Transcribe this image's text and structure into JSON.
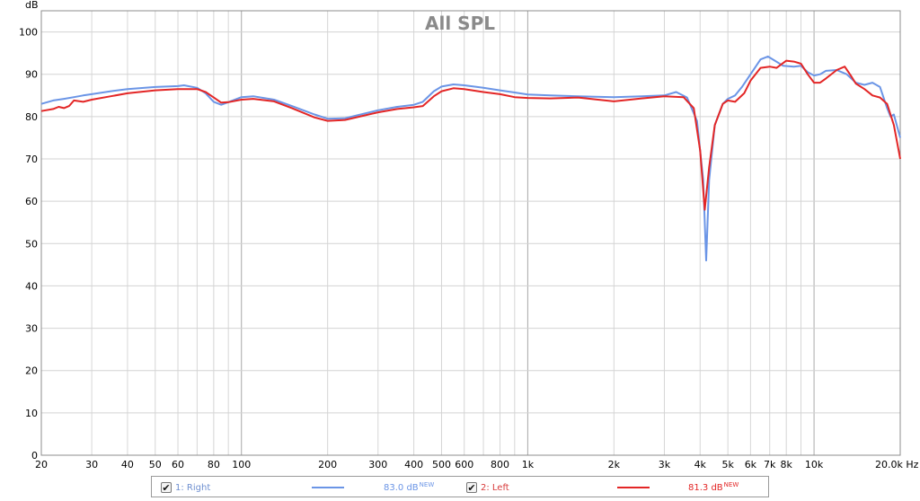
{
  "chart_data": {
    "type": "line",
    "title": "All SPL",
    "ylabel": "dB",
    "xunit": "Hz",
    "xscale": "log",
    "xlim": [
      20,
      20000
    ],
    "ylim": [
      0,
      105
    ],
    "grid": true,
    "yticks": [
      "0",
      "10",
      "20",
      "30",
      "40",
      "50",
      "60",
      "70",
      "80",
      "90",
      "100"
    ],
    "ytick_values": [
      0,
      10,
      20,
      30,
      40,
      50,
      60,
      70,
      80,
      90,
      100
    ],
    "xticks": [
      {
        "v": 20,
        "label": "20"
      },
      {
        "v": 30,
        "label": "30"
      },
      {
        "v": 40,
        "label": "40"
      },
      {
        "v": 50,
        "label": "50"
      },
      {
        "v": 60,
        "label": "60"
      },
      {
        "v": 80,
        "label": "80"
      },
      {
        "v": 100,
        "label": "100"
      },
      {
        "v": 200,
        "label": "200"
      },
      {
        "v": 300,
        "label": "300"
      },
      {
        "v": 400,
        "label": "400"
      },
      {
        "v": 500,
        "label": "500"
      },
      {
        "v": 600,
        "label": "600"
      },
      {
        "v": 800,
        "label": "800"
      },
      {
        "v": 1000,
        "label": "1k"
      },
      {
        "v": 2000,
        "label": "2k"
      },
      {
        "v": 3000,
        "label": "3k"
      },
      {
        "v": 4000,
        "label": "4k"
      },
      {
        "v": 5000,
        "label": "5k"
      },
      {
        "v": 6000,
        "label": "6k"
      },
      {
        "v": 7000,
        "label": "7k"
      },
      {
        "v": 8000,
        "label": "8k"
      },
      {
        "v": 10000,
        "label": "10k"
      },
      {
        "v": 20000,
        "label": "20.0k Hz"
      }
    ],
    "series": [
      {
        "name": "1: Right",
        "color": "#6b95e6",
        "points": [
          [
            20,
            83
          ],
          [
            22,
            83.8
          ],
          [
            24,
            84.2
          ],
          [
            26,
            84.6
          ],
          [
            28,
            85
          ],
          [
            30,
            85.3
          ],
          [
            35,
            86
          ],
          [
            40,
            86.5
          ],
          [
            50,
            87
          ],
          [
            60,
            87.2
          ],
          [
            63,
            87.4
          ],
          [
            70,
            86.8
          ],
          [
            75,
            85.5
          ],
          [
            80,
            83.5
          ],
          [
            85,
            82.8
          ],
          [
            90,
            83.4
          ],
          [
            100,
            84.6
          ],
          [
            110,
            84.8
          ],
          [
            130,
            84
          ],
          [
            150,
            82.5
          ],
          [
            180,
            80.5
          ],
          [
            200,
            79.5
          ],
          [
            230,
            79.6
          ],
          [
            300,
            81.5
          ],
          [
            350,
            82.3
          ],
          [
            400,
            82.8
          ],
          [
            430,
            83.5
          ],
          [
            470,
            86
          ],
          [
            500,
            87.1
          ],
          [
            550,
            87.6
          ],
          [
            600,
            87.4
          ],
          [
            700,
            86.8
          ],
          [
            800,
            86.2
          ],
          [
            900,
            85.7
          ],
          [
            1000,
            85.2
          ],
          [
            1200,
            85
          ],
          [
            1500,
            84.8
          ],
          [
            2000,
            84.6
          ],
          [
            2500,
            84.8
          ],
          [
            3000,
            85
          ],
          [
            3300,
            85.8
          ],
          [
            3600,
            84.5
          ],
          [
            3900,
            79
          ],
          [
            4100,
            65
          ],
          [
            4200,
            46
          ],
          [
            4300,
            65
          ],
          [
            4500,
            78
          ],
          [
            4800,
            83
          ],
          [
            5000,
            84.2
          ],
          [
            5300,
            85
          ],
          [
            5600,
            87
          ],
          [
            6000,
            90
          ],
          [
            6500,
            93.5
          ],
          [
            6900,
            94.2
          ],
          [
            7300,
            93.2
          ],
          [
            7800,
            92
          ],
          [
            8500,
            91.8
          ],
          [
            9000,
            92
          ],
          [
            9500,
            90.5
          ],
          [
            10000,
            89.7
          ],
          [
            10500,
            90
          ],
          [
            11000,
            90.8
          ],
          [
            12000,
            91
          ],
          [
            13000,
            90
          ],
          [
            14000,
            88
          ],
          [
            15000,
            87.5
          ],
          [
            16000,
            88
          ],
          [
            17000,
            87
          ],
          [
            18000,
            82
          ],
          [
            18500,
            80
          ],
          [
            19000,
            80.5
          ],
          [
            20000,
            75
          ]
        ]
      },
      {
        "name": "2: Left",
        "color": "#e32626",
        "points": [
          [
            20,
            81.3
          ],
          [
            22,
            81.8
          ],
          [
            23,
            82.3
          ],
          [
            24,
            82
          ],
          [
            25,
            82.5
          ],
          [
            26,
            83.8
          ],
          [
            28,
            83.5
          ],
          [
            30,
            84
          ],
          [
            35,
            84.8
          ],
          [
            40,
            85.5
          ],
          [
            50,
            86.2
          ],
          [
            60,
            86.5
          ],
          [
            70,
            86.5
          ],
          [
            75,
            85.8
          ],
          [
            80,
            84.5
          ],
          [
            85,
            83.3
          ],
          [
            90,
            83.4
          ],
          [
            100,
            84
          ],
          [
            110,
            84.2
          ],
          [
            130,
            83.6
          ],
          [
            150,
            82
          ],
          [
            180,
            79.8
          ],
          [
            200,
            79
          ],
          [
            230,
            79.2
          ],
          [
            300,
            81
          ],
          [
            350,
            81.8
          ],
          [
            400,
            82.2
          ],
          [
            430,
            82.5
          ],
          [
            470,
            84.8
          ],
          [
            500,
            86
          ],
          [
            550,
            86.7
          ],
          [
            600,
            86.5
          ],
          [
            700,
            85.8
          ],
          [
            800,
            85.3
          ],
          [
            900,
            84.6
          ],
          [
            1000,
            84.4
          ],
          [
            1200,
            84.3
          ],
          [
            1500,
            84.5
          ],
          [
            2000,
            83.6
          ],
          [
            2500,
            84.3
          ],
          [
            3000,
            84.8
          ],
          [
            3500,
            84.6
          ],
          [
            3800,
            82
          ],
          [
            4000,
            72
          ],
          [
            4150,
            58
          ],
          [
            4300,
            68
          ],
          [
            4500,
            78
          ],
          [
            4800,
            83
          ],
          [
            5000,
            83.8
          ],
          [
            5300,
            83.5
          ],
          [
            5700,
            85.5
          ],
          [
            6000,
            88.5
          ],
          [
            6500,
            91.5
          ],
          [
            7000,
            91.8
          ],
          [
            7400,
            91.5
          ],
          [
            8000,
            93.2
          ],
          [
            8500,
            93
          ],
          [
            9000,
            92.5
          ],
          [
            9500,
            90
          ],
          [
            10000,
            88
          ],
          [
            10500,
            88
          ],
          [
            11000,
            89
          ],
          [
            12000,
            91
          ],
          [
            12800,
            91.8
          ],
          [
            13500,
            89.5
          ],
          [
            14000,
            87.8
          ],
          [
            15000,
            86.5
          ],
          [
            16000,
            85
          ],
          [
            17000,
            84.5
          ],
          [
            18000,
            83
          ],
          [
            19000,
            78
          ],
          [
            20000,
            70
          ]
        ]
      }
    ]
  },
  "legend": [
    {
      "label": "1: Right",
      "value": "83.0 dB",
      "badge": "NEW",
      "color": "#6b95e6",
      "checked": "✔"
    },
    {
      "label": "2: Left",
      "value": "81.3 dB",
      "badge": "NEW",
      "color": "#e32626",
      "checked": "✔"
    }
  ]
}
